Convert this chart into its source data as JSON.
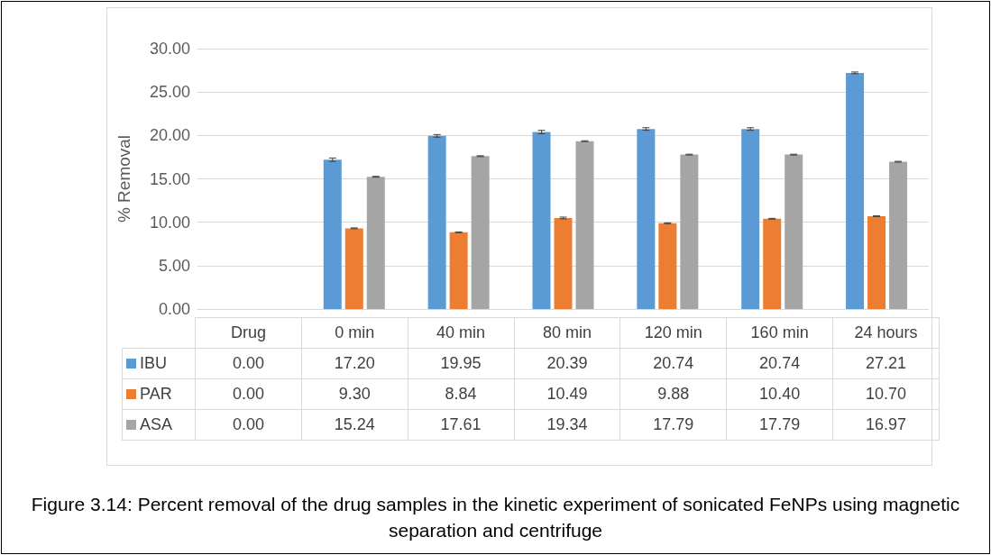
{
  "chart_data": {
    "type": "bar",
    "title": "Figure 3.14: Percent removal of the drug samples in the kinetic experiment of sonicated FeNPs using magnetic separation and centrifuge",
    "ylabel": "% Removal",
    "categories": [
      "Drug",
      "0 min",
      "40 min",
      "80 min",
      "120 min",
      "160 min",
      "24 hours"
    ],
    "series": [
      {
        "name": "IBU",
        "color": "#5b9bd5",
        "values": [
          0,
          17.2,
          19.95,
          20.39,
          20.74,
          20.74,
          27.21
        ],
        "value_labels": [
          "0.00",
          "17.20",
          "19.95",
          "20.39",
          "20.74",
          "20.74",
          "27.21"
        ],
        "errors": [
          null,
          0.2,
          0.15,
          0.2,
          0.15,
          0.15,
          0.1
        ]
      },
      {
        "name": "PAR",
        "color": "#ed7d31",
        "values": [
          0,
          9.3,
          8.84,
          10.49,
          9.88,
          10.4,
          10.7
        ],
        "value_labels": [
          "0.00",
          "9.30",
          "8.84",
          "10.49",
          "9.88",
          "10.40",
          "10.70"
        ],
        "errors": [
          null,
          0.05,
          0.05,
          0.1,
          0.05,
          0.05,
          0.05
        ]
      },
      {
        "name": "ASA",
        "color": "#a5a5a5",
        "values": [
          0,
          15.24,
          17.61,
          19.34,
          17.79,
          17.79,
          16.97
        ],
        "value_labels": [
          "0.00",
          "15.24",
          "17.61",
          "19.34",
          "17.79",
          "17.79",
          "16.97"
        ],
        "errors": [
          null,
          0.05,
          0.05,
          0.05,
          0.05,
          0.05,
          0.05
        ]
      }
    ],
    "ylim": [
      0,
      30
    ],
    "yticks": [
      {
        "value": 0,
        "label": "0.00"
      },
      {
        "value": 5,
        "label": "5.00"
      },
      {
        "value": 10,
        "label": "10.00"
      },
      {
        "value": 15,
        "label": "15.00"
      },
      {
        "value": 20,
        "label": "20.00"
      },
      {
        "value": 25,
        "label": "25.00"
      },
      {
        "value": 30,
        "label": "30.00"
      }
    ],
    "grid": "y",
    "legend": "bottom"
  }
}
